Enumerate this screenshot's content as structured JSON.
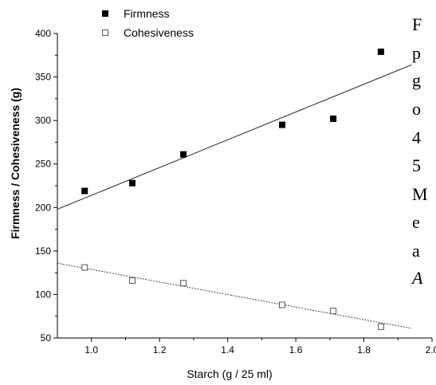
{
  "chart_data": {
    "type": "scatter",
    "xlabel": "Starch (g / 25 ml)",
    "ylabel": "Firmness / Cohesiveness (g)",
    "xlim": [
      0.9,
      2.0
    ],
    "ylim": [
      50,
      400
    ],
    "x_ticks": [
      1.0,
      1.2,
      1.4,
      1.6,
      1.8,
      2.0
    ],
    "x_tick_labels": [
      "1.0",
      "1.2",
      "1.4",
      "1.6",
      "1.8",
      "2.0"
    ],
    "y_ticks": [
      50,
      100,
      150,
      200,
      250,
      300,
      350,
      400
    ],
    "y_tick_labels": [
      "50",
      "100",
      "150",
      "200",
      "250",
      "300",
      "350",
      "400"
    ],
    "legend_position": "top-left",
    "series": [
      {
        "name": "Firmness",
        "marker": "filled-square",
        "color": "#000000",
        "x": [
          0.98,
          1.12,
          1.27,
          1.56,
          1.71,
          1.85
        ],
        "y": [
          219,
          228,
          261,
          295,
          302,
          379
        ],
        "trendline": {
          "x": [
            0.9,
            1.94
          ],
          "y": [
            198,
            364
          ]
        }
      },
      {
        "name": "Cohesiveness",
        "marker": "open-square",
        "color": "#555555",
        "x": [
          0.98,
          1.12,
          1.27,
          1.56,
          1.71,
          1.85
        ],
        "y": [
          131,
          116,
          113,
          88,
          81,
          63
        ],
        "trendline": {
          "x": [
            0.9,
            1.94
          ],
          "y": [
            136,
            61
          ]
        }
      }
    ]
  },
  "side_text": {
    "lines": [
      "F",
      "p",
      "g",
      "o",
      "4",
      "5",
      "M",
      "e",
      "a",
      "A"
    ]
  }
}
